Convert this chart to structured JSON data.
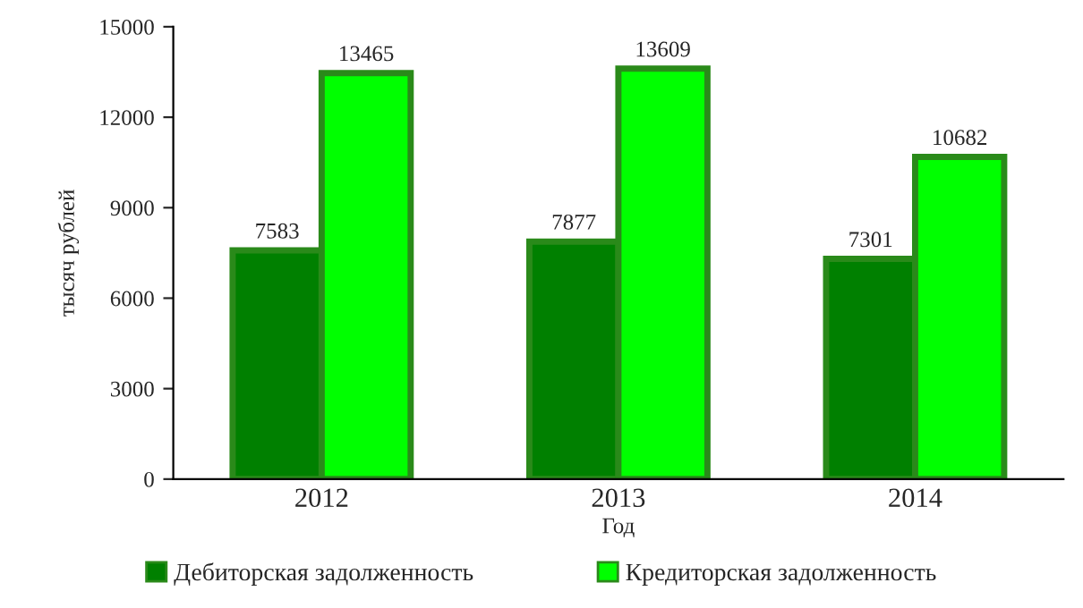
{
  "chart_data": {
    "type": "bar",
    "xlabel": "Год",
    "ylabel": "тысяч рублей",
    "categories": [
      "2012",
      "2013",
      "2014"
    ],
    "series": [
      {
        "name": "Дебиторская задолженность",
        "color": "#008000",
        "values": [
          7583,
          7877,
          7301
        ]
      },
      {
        "name": "Кредиторская задолженность",
        "color": "#00ff00",
        "values": [
          13465,
          13609,
          10682
        ]
      }
    ],
    "ylim": [
      0,
      15000
    ],
    "yticks": [
      0,
      3000,
      6000,
      9000,
      12000,
      15000
    ],
    "grid": false,
    "legend": "bottom",
    "data_labels": true
  }
}
